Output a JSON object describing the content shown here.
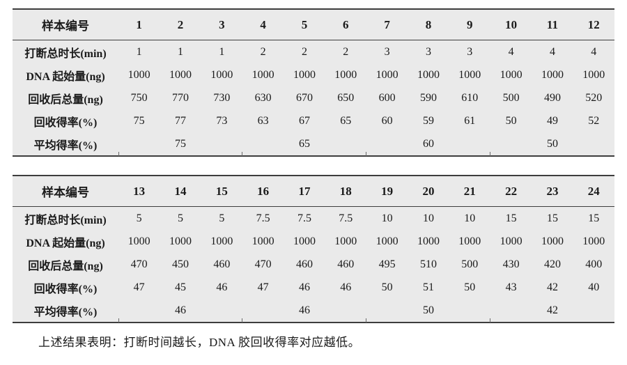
{
  "style": {
    "table_background": "#eaeaea",
    "border_color": "#3d3d3d",
    "text_color": "#1a1a1a"
  },
  "tables": [
    {
      "corner_label": "样本编号",
      "sample_ids": [
        "1",
        "2",
        "3",
        "4",
        "5",
        "6",
        "7",
        "8",
        "9",
        "10",
        "11",
        "12"
      ],
      "rows": [
        {
          "label": "打断总时长(min)",
          "values": [
            "1",
            "1",
            "1",
            "2",
            "2",
            "2",
            "3",
            "3",
            "3",
            "4",
            "4",
            "4"
          ]
        },
        {
          "label": "DNA 起始量(ng)",
          "values": [
            "1000",
            "1000",
            "1000",
            "1000",
            "1000",
            "1000",
            "1000",
            "1000",
            "1000",
            "1000",
            "1000",
            "1000"
          ]
        },
        {
          "label": "回收后总量(ng)",
          "values": [
            "750",
            "770",
            "730",
            "630",
            "670",
            "650",
            "600",
            "590",
            "610",
            "500",
            "490",
            "520"
          ]
        },
        {
          "label": "回收得率(%)",
          "values": [
            "75",
            "77",
            "73",
            "63",
            "67",
            "65",
            "60",
            "59",
            "61",
            "50",
            "49",
            "52"
          ]
        }
      ],
      "average_row": {
        "label": "平均得率(%)",
        "group_span": 3,
        "values": [
          "75",
          "65",
          "60",
          "50"
        ]
      }
    },
    {
      "corner_label": "样本编号",
      "sample_ids": [
        "13",
        "14",
        "15",
        "16",
        "17",
        "18",
        "19",
        "20",
        "21",
        "22",
        "23",
        "24"
      ],
      "rows": [
        {
          "label": "打断总时长(min)",
          "values": [
            "5",
            "5",
            "5",
            "7.5",
            "7.5",
            "7.5",
            "10",
            "10",
            "10",
            "15",
            "15",
            "15"
          ]
        },
        {
          "label": "DNA 起始量(ng)",
          "values": [
            "1000",
            "1000",
            "1000",
            "1000",
            "1000",
            "1000",
            "1000",
            "1000",
            "1000",
            "1000",
            "1000",
            "1000"
          ]
        },
        {
          "label": "回收后总量(ng)",
          "values": [
            "470",
            "450",
            "460",
            "470",
            "460",
            "460",
            "495",
            "510",
            "500",
            "430",
            "420",
            "400"
          ]
        },
        {
          "label": "回收得率(%)",
          "values": [
            "47",
            "45",
            "46",
            "47",
            "46",
            "46",
            "50",
            "51",
            "50",
            "43",
            "42",
            "40"
          ]
        }
      ],
      "average_row": {
        "label": "平均得率(%)",
        "group_span": 3,
        "values": [
          "46",
          "46",
          "50",
          "42"
        ]
      }
    }
  ],
  "footer_note": "上述结果表明：打断时间越长，DNA 胶回收得率对应越低。"
}
